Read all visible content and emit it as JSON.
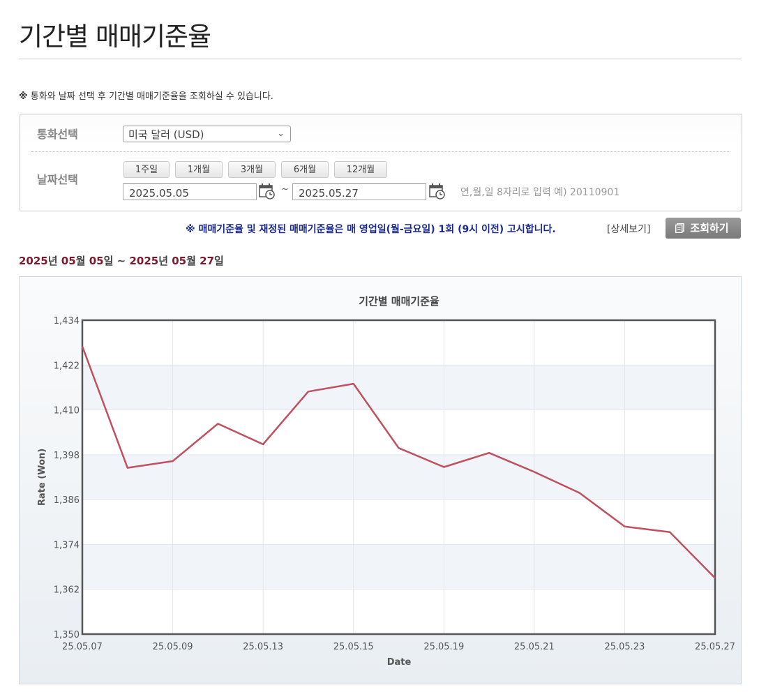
{
  "page": {
    "title": "기간별 매매기준율",
    "notice": "통화와 날짜 선택 후 기간별 매매기준율을 조회하실 수 있습니다.",
    "notice_mark": "※"
  },
  "form": {
    "currency_label": "통화선택",
    "currency_selected": "미국 달러 (USD)",
    "date_label": "날짜선택",
    "period_buttons": [
      "1주일",
      "1개월",
      "3개월",
      "6개월",
      "12개월"
    ],
    "start_date": "2025.05.05",
    "end_date": "2025.05.27",
    "tilde": "~",
    "date_hint": "연,월,일 8자리로 입력 예) 20110901"
  },
  "notice2": "※ 매매기준율 및 재정된 매매기준율은 매 영업일(월-금요일) 1회 (9시 이전) 고시합니다.",
  "detail_link": "[상세보기]",
  "search_button": "조회하기",
  "period_display": {
    "start_year": "2025",
    "start_month": "05",
    "start_day": "05",
    "end_year": "2025",
    "end_month": "05",
    "end_day": "27",
    "year_unit": "년",
    "month_unit": "월",
    "day_unit": "일",
    "sep": "~"
  },
  "colors": {
    "line": "#c0505f",
    "notice2": "#1a2a8c",
    "period_number": "#7a1a2c"
  },
  "chart_data": {
    "type": "line",
    "title": "기간별 매매기준율",
    "xlabel": "Date",
    "ylabel": "Rate (Won)",
    "ylim": [
      1350,
      1434
    ],
    "yticks": [
      1350,
      1362,
      1374,
      1386,
      1398,
      1410,
      1422,
      1434
    ],
    "ytick_labels": [
      "1,350",
      "1,362",
      "1,374",
      "1,386",
      "1,398",
      "1,410",
      "1,422",
      "1,434"
    ],
    "xtick_labels": [
      "25.05.07",
      "25.05.09",
      "25.05.13",
      "25.05.15",
      "25.05.19",
      "25.05.21",
      "25.05.23",
      "25.05.27"
    ],
    "x": [
      "25.05.07",
      "25.05.08",
      "25.05.09",
      "25.05.12",
      "25.05.13",
      "25.05.14",
      "25.05.15",
      "25.05.16",
      "25.05.19",
      "25.05.20",
      "25.05.21",
      "25.05.22",
      "25.05.23",
      "25.05.26",
      "25.05.27"
    ],
    "values": [
      1427.0,
      1394.5,
      1396.3,
      1406.3,
      1400.8,
      1414.9,
      1417.0,
      1399.8,
      1394.7,
      1398.5,
      1393.4,
      1387.8,
      1378.8,
      1377.3,
      1365.0
    ],
    "grid": true
  }
}
